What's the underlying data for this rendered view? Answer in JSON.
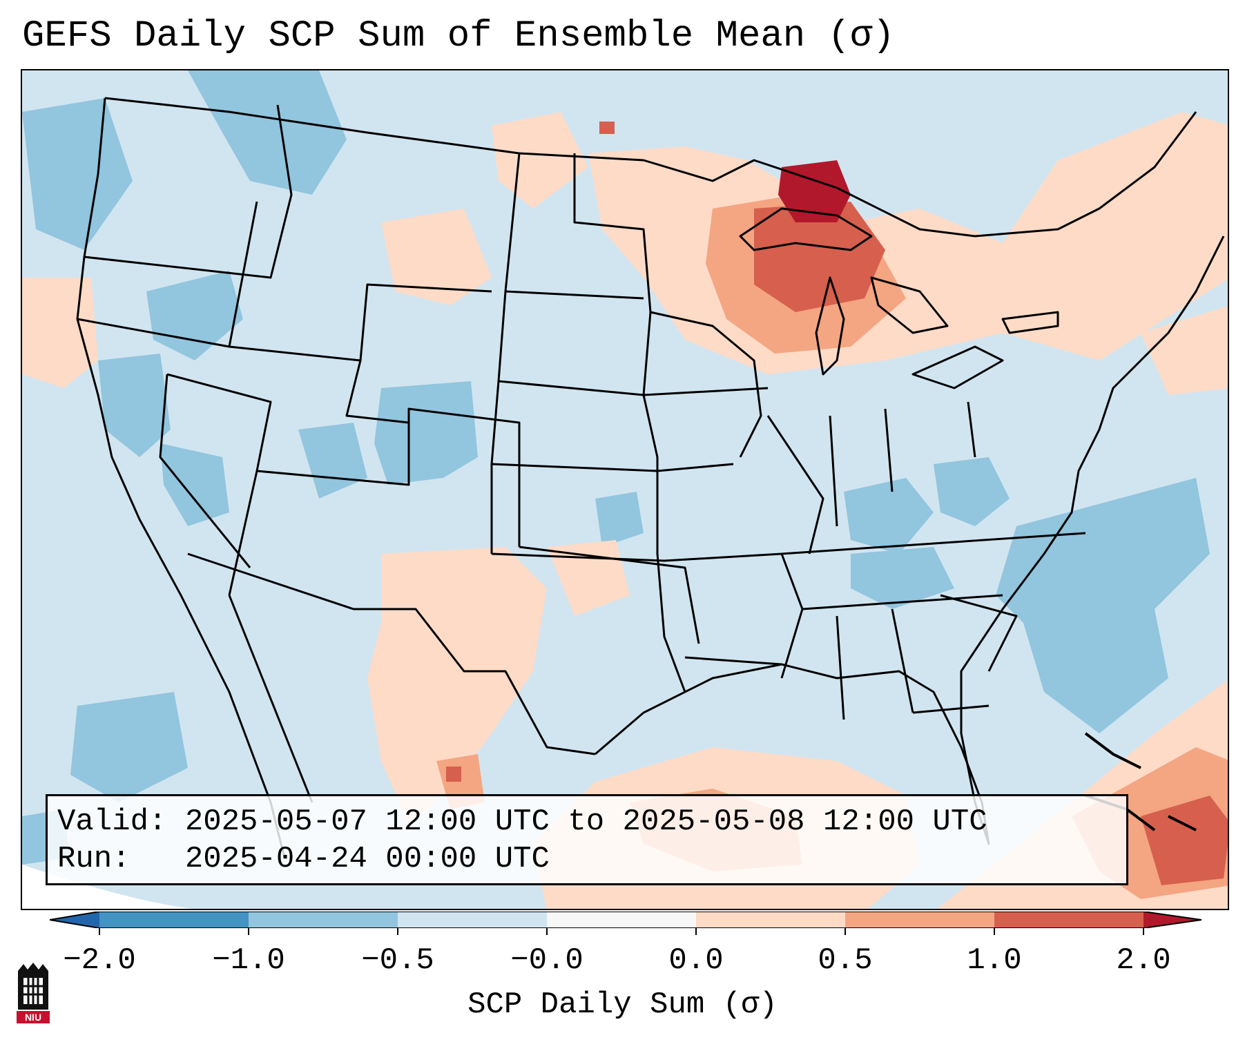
{
  "title": "GEFS Daily SCP Sum of Ensemble Mean (σ)",
  "info": {
    "valid_label": "Valid:",
    "valid_value": "2025-05-07 12:00 UTC to 2025-05-08 12:00 UTC",
    "run_label": "Run:",
    "run_value": "2025-04-24 00:00 UTC"
  },
  "colorbar": {
    "label": "SCP Daily Sum (σ)",
    "ticks": [
      "−2.0",
      "−1.0",
      "−0.5",
      "−0.0",
      "0.0",
      "0.5",
      "1.0",
      "2.0"
    ],
    "colors": [
      "#2166ac",
      "#4393c3",
      "#92c5de",
      "#d1e5f0",
      "#f7f7f7",
      "#fddbc7",
      "#f4a582",
      "#d6604d",
      "#b2182b"
    ]
  },
  "logo": {
    "text": "NIU"
  },
  "map_fields": {
    "background_level": "-0.5 to 0.0",
    "maximum_region": "Upper Great Lakes (Lake Superior / Michigan Upper Peninsula)",
    "elevated_regions": [
      "Gulf of Mexico",
      "Caribbean / Bahamas",
      "West Texas / New Mexico",
      "Upper Midwest"
    ],
    "lower_regions": [
      "Pacific Northwest",
      "Colorado Rockies",
      "Western Atlantic",
      "Ohio Valley"
    ]
  }
}
